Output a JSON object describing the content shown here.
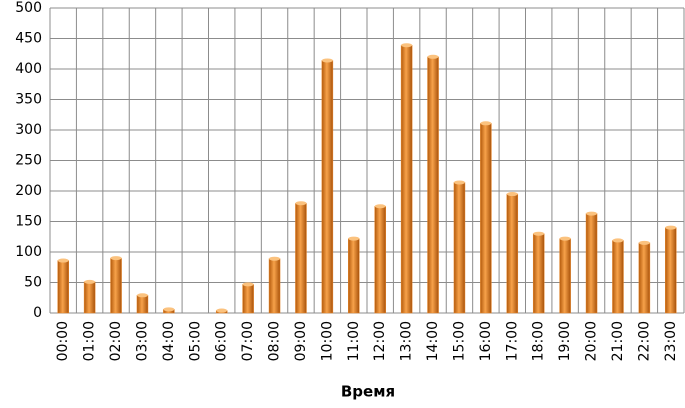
{
  "chart_data": {
    "type": "bar",
    "x_label": "Время",
    "categories": [
      "00:00",
      "01:00",
      "02:00",
      "03:00",
      "04:00",
      "05:00",
      "06:00",
      "07:00",
      "08:00",
      "09:00",
      "10:00",
      "11:00",
      "12:00",
      "13:00",
      "14:00",
      "15:00",
      "16:00",
      "17:00",
      "18:00",
      "19:00",
      "20:00",
      "21:00",
      "22:00",
      "23:00"
    ],
    "values": [
      86,
      51,
      90,
      29,
      6,
      0,
      4,
      47,
      89,
      180,
      414,
      122,
      175,
      439,
      420,
      214,
      311,
      195,
      130,
      122,
      163,
      119,
      115,
      140
    ],
    "color": "#e8862a",
    "ylim": [
      0,
      500
    ],
    "yticks": [
      0,
      50,
      100,
      150,
      200,
      250,
      300,
      350,
      400,
      450,
      500
    ],
    "grid": true
  }
}
